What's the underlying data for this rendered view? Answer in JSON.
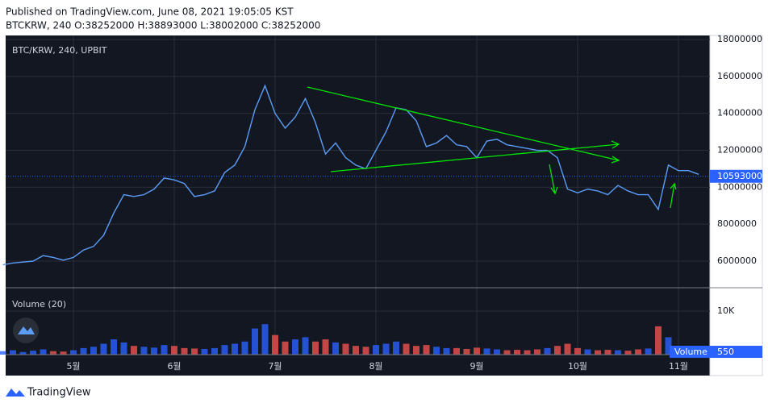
{
  "header": {
    "published": "Published on TradingView.com, June 08, 2021 19:05:05 KST",
    "ohlc": "BTCKRW, 240 O:38252000 H:38893000 L:38002000 C:38252000"
  },
  "footer": "TradingView",
  "chart_data": [
    {
      "type": "line",
      "title": "BTC/KRW, 240, UPBIT",
      "color": "#5b9cf6",
      "categories": [
        null,
        null,
        null,
        null,
        null,
        null,
        null,
        "5월",
        null,
        null,
        null,
        null,
        null,
        null,
        null,
        null,
        null,
        "6월",
        null,
        null,
        null,
        null,
        null,
        null,
        null,
        null,
        null,
        "7월",
        null,
        null,
        null,
        null,
        null,
        null,
        null,
        null,
        null,
        "8월",
        null,
        null,
        null,
        null,
        null,
        null,
        null,
        null,
        null,
        "9월",
        null,
        null,
        null,
        null,
        null,
        null,
        null,
        null,
        null,
        "10월",
        null,
        null,
        null,
        null,
        null,
        null,
        null,
        null,
        null,
        "11월",
        null,
        null
      ],
      "values": [
        5800000,
        5900000,
        5950000,
        6000000,
        6300000,
        6200000,
        6050000,
        6200000,
        6600000,
        6800000,
        7400000,
        8600000,
        9600000,
        9500000,
        9600000,
        9900000,
        10500000,
        10400000,
        10200000,
        9500000,
        9600000,
        9800000,
        10800000,
        11200000,
        12200000,
        14200000,
        15500000,
        14000000,
        13200000,
        13800000,
        14800000,
        13500000,
        11800000,
        12400000,
        11600000,
        11200000,
        11000000,
        12000000,
        13000000,
        14300000,
        14200000,
        13600000,
        12200000,
        12400000,
        12800000,
        12300000,
        12200000,
        11600000,
        12500000,
        12600000,
        12300000,
        12200000,
        12100000,
        12000000,
        12000000,
        11600000,
        9900000,
        9700000,
        9900000,
        9800000,
        9600000,
        10100000,
        9800000,
        9600000,
        9600000,
        8800000,
        11200000,
        10900000,
        10900000,
        10700000
      ],
      "last_value": 10593000,
      "last_color": "#2962ff",
      "ylim": [
        4560000,
        18220000
      ],
      "yticks": [
        6000000,
        8000000,
        10000000,
        12000000,
        14000000,
        16000000,
        18000000
      ],
      "grid": true
    },
    {
      "type": "bar",
      "title": "Volume (20)",
      "name": "Volume",
      "up_color": "#2962ff",
      "down_color": "#ef5350",
      "values": [
        800,
        1000,
        600,
        900,
        1200,
        800,
        700,
        1000,
        1500,
        1800,
        2500,
        3500,
        2800,
        2000,
        1800,
        1600,
        2200,
        2000,
        1500,
        1400,
        1300,
        1500,
        2200,
        2500,
        3000,
        6000,
        7000,
        4500,
        3000,
        3500,
        4000,
        3000,
        3500,
        2800,
        2500,
        2000,
        1800,
        2200,
        2500,
        3000,
        2500,
        2000,
        2200,
        1800,
        1500,
        1500,
        1300,
        1600,
        1400,
        1200,
        1000,
        1100,
        1000,
        1200,
        1500,
        2000,
        2500,
        1500,
        1200,
        1000,
        1100,
        1000,
        900,
        1200,
        1400,
        6500,
        4000,
        2000,
        1200,
        900
      ],
      "last_value": 550,
      "ylim": [
        0,
        15370
      ],
      "yticks": [
        {
          "value": 10000,
          "label": "10K"
        }
      ]
    }
  ]
}
